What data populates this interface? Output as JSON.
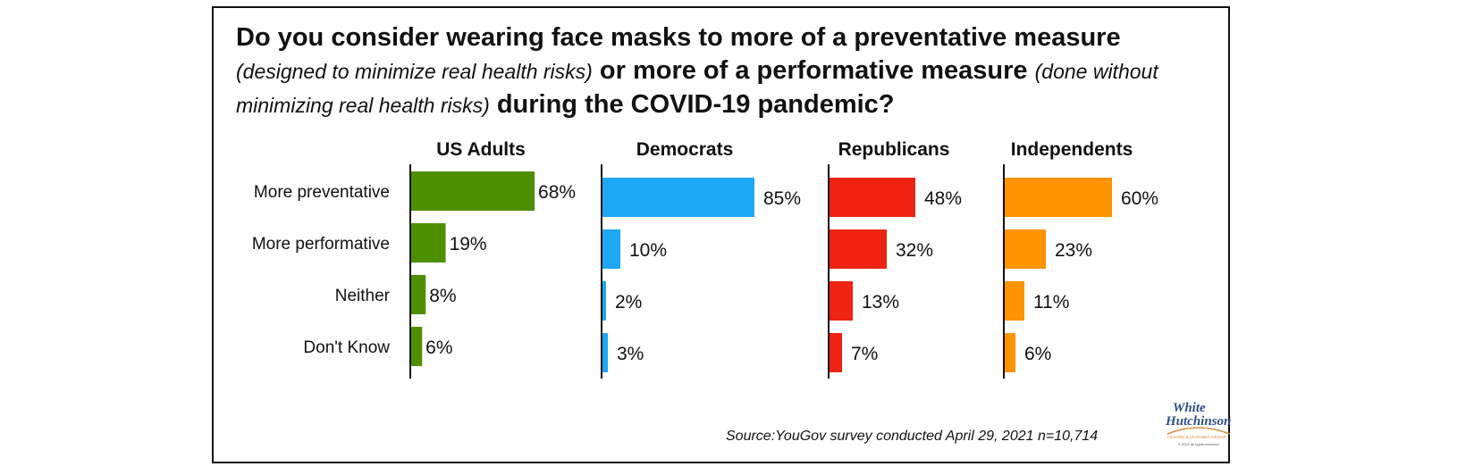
{
  "title": {
    "part1": "Do you consider wearing face masks to more of a preventative measure",
    "part2_italic": "(designed to minimize real health risks)",
    "part3": "or more of a performative measure",
    "part4_italic": "(done without minimizing real health risks)",
    "part5": "during the COVID-19 pandemic?"
  },
  "source": "Source:YouGov survey conducted April 29, 2021 n=10,714",
  "logo": {
    "line1": "White",
    "line2": "Hutchinson",
    "tagline": "LEISURE & LEARNING GROUP",
    "copyright": "© 2021 all rights reserved"
  },
  "chart_data": {
    "type": "bar",
    "orientation": "horizontal",
    "categories": [
      "More preventative",
      "More performative",
      "Neither",
      "Don't Know"
    ],
    "series": [
      {
        "name": "US Adults",
        "color": "#4e8f00",
        "values": [
          68,
          19,
          8,
          6
        ]
      },
      {
        "name": "Democrats",
        "color": "#1ea7f5",
        "values": [
          85,
          10,
          2,
          3
        ]
      },
      {
        "name": "Republicans",
        "color": "#ee2312",
        "values": [
          48,
          32,
          13,
          7
        ]
      },
      {
        "name": "Independents",
        "color": "#ff9300",
        "values": [
          60,
          23,
          11,
          6
        ]
      }
    ],
    "value_suffix": "%"
  }
}
